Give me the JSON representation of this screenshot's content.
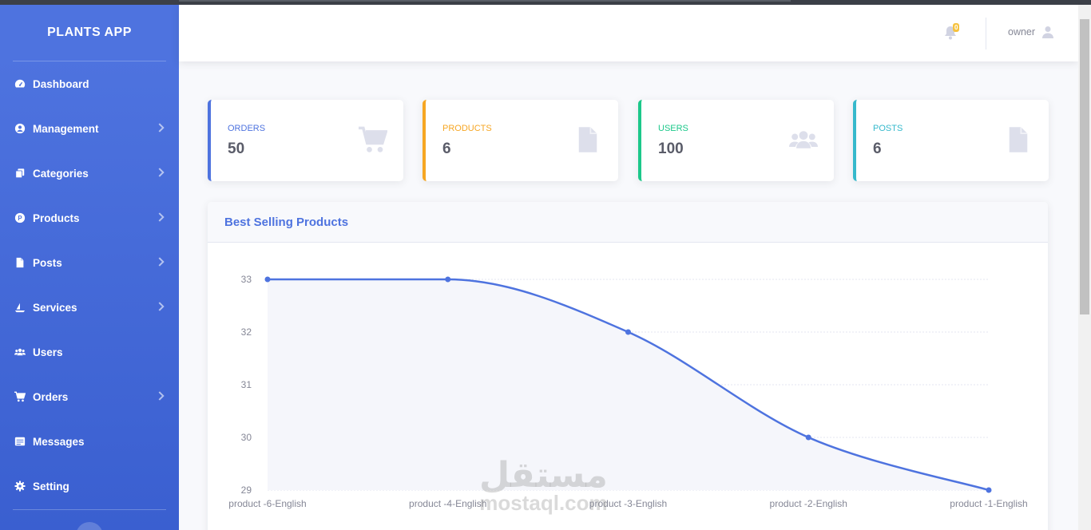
{
  "app": {
    "title": "PLANTS APP"
  },
  "sidebar": {
    "items": [
      {
        "label": "Dashboard",
        "icon": "dashboard-icon",
        "has_submenu": false
      },
      {
        "label": "Management",
        "icon": "user-circle-icon",
        "has_submenu": true
      },
      {
        "label": "Categories",
        "icon": "copy-icon",
        "has_submenu": true
      },
      {
        "label": "Products",
        "icon": "product-p-icon",
        "has_submenu": true
      },
      {
        "label": "Posts",
        "icon": "file-icon",
        "has_submenu": true
      },
      {
        "label": "Services",
        "icon": "ship-icon",
        "has_submenu": true
      },
      {
        "label": "Users",
        "icon": "users-icon",
        "has_submenu": false
      },
      {
        "label": "Orders",
        "icon": "cart-icon",
        "has_submenu": true
      },
      {
        "label": "Messages",
        "icon": "mail-bulk-icon",
        "has_submenu": false
      },
      {
        "label": "Setting",
        "icon": "gear-icon",
        "has_submenu": false
      }
    ]
  },
  "topbar": {
    "notifications_count": "0",
    "user_name": "owner"
  },
  "cards": [
    {
      "label": "ORDERS",
      "value": "50",
      "color": "#4e73df",
      "icon": "cart-icon"
    },
    {
      "label": "PRODUCTS",
      "value": "6",
      "color": "#f6a623",
      "icon": "file-icon"
    },
    {
      "label": "USERS",
      "value": "100",
      "color": "#1cc88a",
      "icon": "users-icon"
    },
    {
      "label": "POSTS",
      "value": "6",
      "color": "#36b9cc",
      "icon": "file-icon"
    }
  ],
  "panel": {
    "title": "Best Selling Products"
  },
  "chart_data": {
    "type": "area",
    "title": "Best Selling Products",
    "categories": [
      "product -6-English",
      "product -4-English",
      "product -3-English",
      "product -2-English",
      "product -1-English"
    ],
    "series": [
      {
        "values": [
          33,
          33,
          32,
          30,
          29
        ]
      }
    ],
    "ylim": [
      29,
      33
    ],
    "yticks": [
      29,
      30,
      31,
      32,
      33
    ],
    "grid": true,
    "line_color": "#4e73df",
    "fill_color": "#f5f6fb"
  },
  "watermark": {
    "arabic": "مستقل",
    "latin": "mostaql.com"
  }
}
